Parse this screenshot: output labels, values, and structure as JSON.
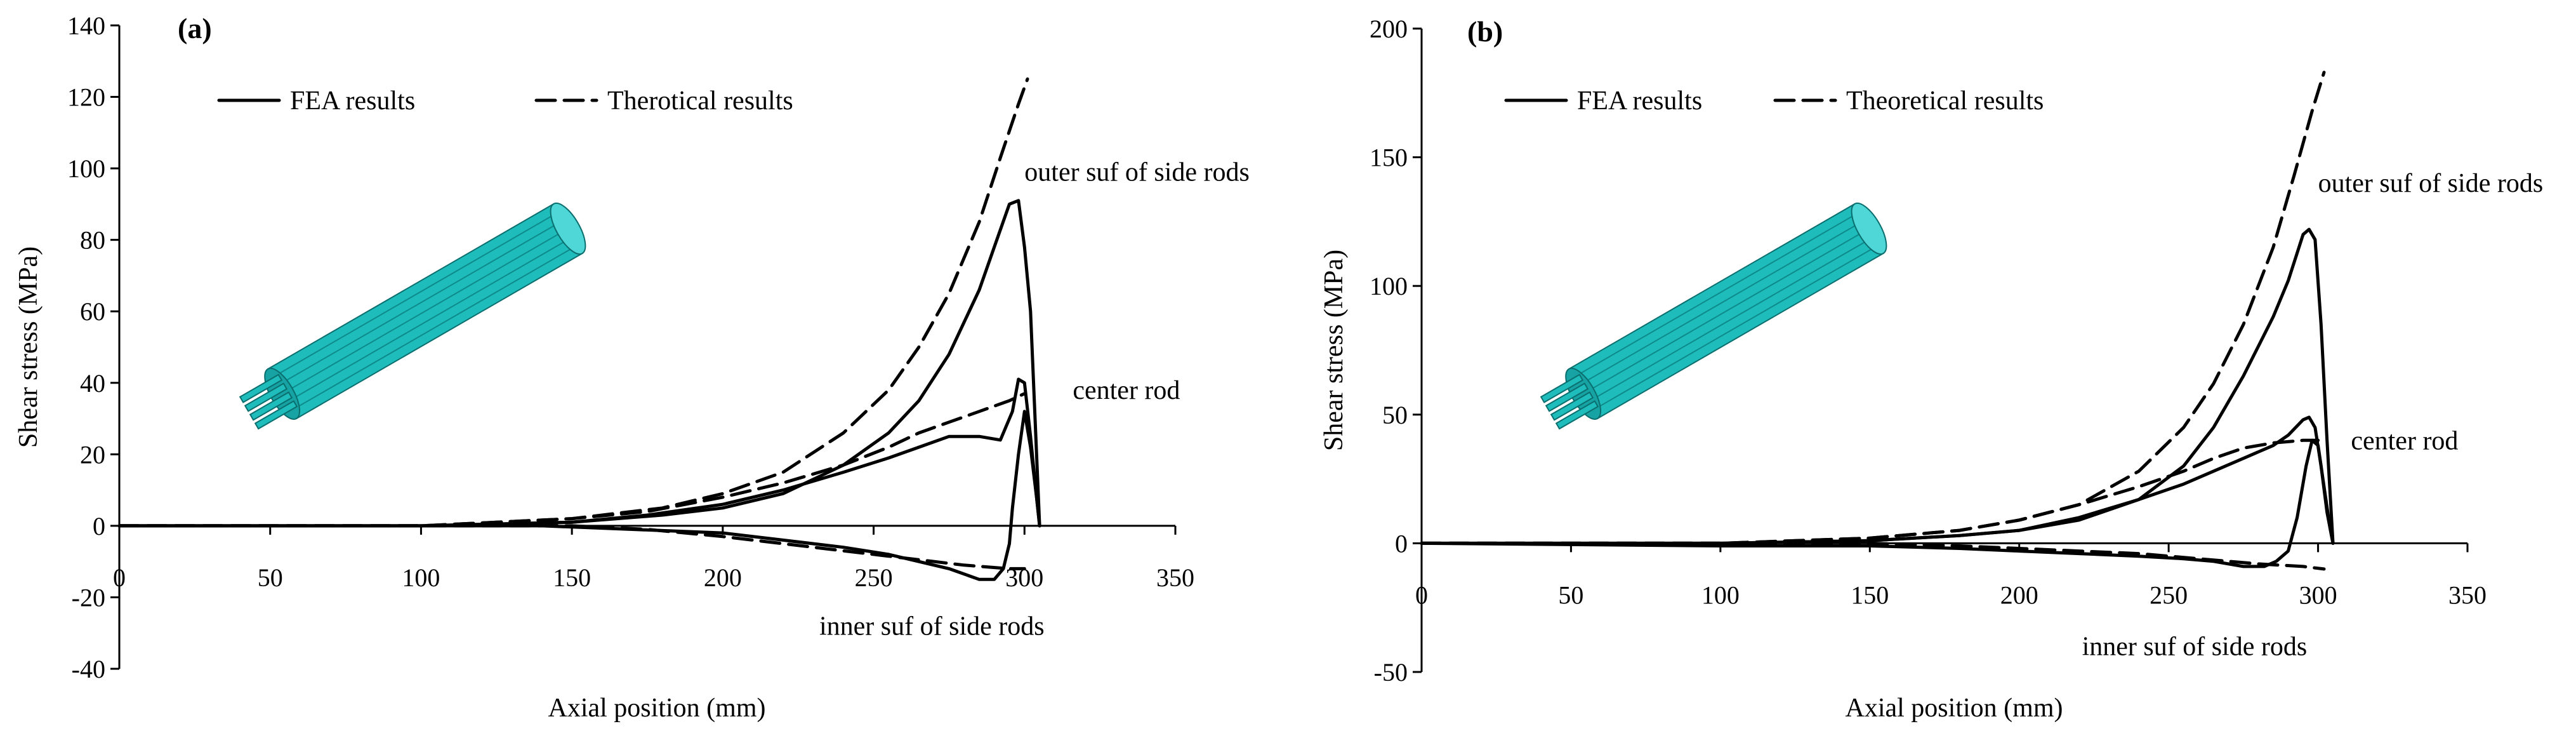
{
  "chart_data": [
    {
      "type": "line",
      "panel_label": "(a)",
      "xlabel": "Axial position  (mm)",
      "ylabel": "Shear stress (MPa)",
      "xlim": [
        0,
        350
      ],
      "ylim": [
        -40,
        140
      ],
      "xticks": [
        0,
        50,
        100,
        150,
        200,
        250,
        300,
        350
      ],
      "yticks": [
        -40,
        -20,
        0,
        20,
        40,
        60,
        80,
        100,
        120,
        140
      ],
      "grid": false,
      "legend_position": "top-left",
      "legend": [
        {
          "label": "FEA results",
          "style": "solid"
        },
        {
          "label": "Therotical results",
          "style": "dashed"
        }
      ],
      "annotations": [
        {
          "text": "outer suf of side rods",
          "x": 300,
          "y": 99
        },
        {
          "text": "center rod",
          "x": 316,
          "y": 38
        },
        {
          "text": "inner suf of side rods",
          "x": 232,
          "y": -28
        }
      ],
      "series": [
        {
          "style": "solid",
          "points": [
            [
              0,
              0
            ],
            [
              100,
              0
            ],
            [
              150,
              1
            ],
            [
              180,
              3
            ],
            [
              200,
              5
            ],
            [
              220,
              9
            ],
            [
              240,
              17
            ],
            [
              255,
              26
            ],
            [
              265,
              35
            ],
            [
              275,
              48
            ],
            [
              285,
              66
            ],
            [
              290,
              78
            ],
            [
              295,
              90
            ],
            [
              298,
              91
            ],
            [
              300,
              78
            ],
            [
              302,
              60
            ],
            [
              305,
              0
            ]
          ]
        },
        {
          "style": "dashed",
          "points": [
            [
              0,
              0
            ],
            [
              100,
              0
            ],
            [
              150,
              2
            ],
            [
              180,
              5
            ],
            [
              200,
              9
            ],
            [
              220,
              15
            ],
            [
              240,
              26
            ],
            [
              255,
              38
            ],
            [
              265,
              50
            ],
            [
              275,
              65
            ],
            [
              285,
              85
            ],
            [
              292,
              103
            ],
            [
              298,
              118
            ],
            [
              301,
              125
            ]
          ]
        },
        {
          "style": "solid",
          "points": [
            [
              0,
              0
            ],
            [
              100,
              0
            ],
            [
              150,
              1
            ],
            [
              175,
              3
            ],
            [
              200,
              6
            ],
            [
              220,
              10
            ],
            [
              240,
              15
            ],
            [
              255,
              19
            ],
            [
              265,
              22
            ],
            [
              275,
              25
            ],
            [
              285,
              25
            ],
            [
              292,
              24
            ],
            [
              296,
              32
            ],
            [
              298,
              41
            ],
            [
              300,
              40
            ],
            [
              302,
              25
            ],
            [
              304,
              8
            ],
            [
              305,
              0
            ]
          ]
        },
        {
          "style": "dashed",
          "points": [
            [
              0,
              0
            ],
            [
              100,
              0
            ],
            [
              150,
              2
            ],
            [
              175,
              4
            ],
            [
              200,
              8
            ],
            [
              220,
              12
            ],
            [
              240,
              17
            ],
            [
              255,
              22
            ],
            [
              265,
              26
            ],
            [
              275,
              29
            ],
            [
              285,
              32
            ],
            [
              295,
              35
            ],
            [
              300,
              37
            ]
          ]
        },
        {
          "style": "solid",
          "points": [
            [
              0,
              0
            ],
            [
              140,
              0
            ],
            [
              170,
              -1
            ],
            [
              200,
              -2
            ],
            [
              220,
              -4
            ],
            [
              240,
              -6
            ],
            [
              255,
              -8
            ],
            [
              265,
              -10
            ],
            [
              275,
              -12
            ],
            [
              285,
              -15
            ],
            [
              290,
              -15
            ],
            [
              293,
              -12
            ],
            [
              295,
              -5
            ],
            [
              296,
              5
            ],
            [
              298,
              20
            ],
            [
              300,
              32
            ],
            [
              302,
              22
            ],
            [
              304,
              8
            ],
            [
              305,
              0
            ]
          ]
        },
        {
          "style": "dashed",
          "points": [
            [
              0,
              0
            ],
            [
              150,
              0
            ],
            [
              175,
              -1
            ],
            [
              200,
              -3
            ],
            [
              220,
              -5
            ],
            [
              240,
              -7
            ],
            [
              260,
              -9
            ],
            [
              280,
              -11
            ],
            [
              295,
              -12
            ],
            [
              300,
              -12
            ]
          ]
        }
      ]
    },
    {
      "type": "line",
      "panel_label": "(b)",
      "xlabel": "Axial position  (mm)",
      "ylabel": "Shear stress (MPa)",
      "xlim": [
        0,
        350
      ],
      "ylim": [
        -50,
        200
      ],
      "xticks": [
        0,
        50,
        100,
        150,
        200,
        250,
        300,
        350
      ],
      "yticks": [
        -50,
        0,
        50,
        100,
        150,
        200
      ],
      "grid": false,
      "legend_position": "top-left",
      "legend": [
        {
          "label": "FEA results",
          "style": "solid"
        },
        {
          "label": "Theoretical results",
          "style": "dashed"
        }
      ],
      "annotations": [
        {
          "text": "outer suf of side rods",
          "x": 300,
          "y": 140
        },
        {
          "text": "center rod",
          "x": 311,
          "y": 40
        },
        {
          "text": "inner suf of side rods",
          "x": 221,
          "y": -40
        }
      ],
      "series": [
        {
          "style": "solid",
          "points": [
            [
              0,
              0
            ],
            [
              100,
              0
            ],
            [
              150,
              1
            ],
            [
              180,
              3
            ],
            [
              200,
              5
            ],
            [
              220,
              9
            ],
            [
              240,
              17
            ],
            [
              255,
              30
            ],
            [
              265,
              45
            ],
            [
              275,
              65
            ],
            [
              285,
              88
            ],
            [
              290,
              102
            ],
            [
              295,
              120
            ],
            [
              297,
              122
            ],
            [
              299,
              118
            ],
            [
              301,
              85
            ],
            [
              303,
              40
            ],
            [
              305,
              0
            ]
          ]
        },
        {
          "style": "dashed",
          "points": [
            [
              0,
              0
            ],
            [
              100,
              0
            ],
            [
              150,
              2
            ],
            [
              180,
              5
            ],
            [
              200,
              9
            ],
            [
              220,
              15
            ],
            [
              240,
              28
            ],
            [
              255,
              45
            ],
            [
              265,
              62
            ],
            [
              275,
              85
            ],
            [
              285,
              115
            ],
            [
              292,
              143
            ],
            [
              298,
              168
            ],
            [
              302,
              183
            ]
          ]
        },
        {
          "style": "solid",
          "points": [
            [
              0,
              0
            ],
            [
              100,
              0
            ],
            [
              150,
              1
            ],
            [
              180,
              3
            ],
            [
              200,
              5
            ],
            [
              220,
              10
            ],
            [
              240,
              17
            ],
            [
              255,
              23
            ],
            [
              265,
              28
            ],
            [
              275,
              33
            ],
            [
              285,
              38
            ],
            [
              290,
              42
            ],
            [
              295,
              48
            ],
            [
              297,
              49
            ],
            [
              299,
              45
            ],
            [
              301,
              30
            ],
            [
              303,
              12
            ],
            [
              305,
              0
            ]
          ]
        },
        {
          "style": "dashed",
          "points": [
            [
              0,
              0
            ],
            [
              100,
              0
            ],
            [
              150,
              2
            ],
            [
              180,
              5
            ],
            [
              200,
              9
            ],
            [
              220,
              15
            ],
            [
              240,
              22
            ],
            [
              255,
              28
            ],
            [
              265,
              33
            ],
            [
              275,
              37
            ],
            [
              285,
              39
            ],
            [
              295,
              40
            ],
            [
              300,
              40
            ]
          ]
        },
        {
          "style": "solid",
          "points": [
            [
              0,
              0
            ],
            [
              100,
              -1
            ],
            [
              150,
              -1
            ],
            [
              180,
              -2
            ],
            [
              200,
              -3
            ],
            [
              220,
              -4
            ],
            [
              240,
              -5
            ],
            [
              255,
              -6
            ],
            [
              265,
              -7
            ],
            [
              275,
              -9
            ],
            [
              282,
              -9
            ],
            [
              286,
              -7
            ],
            [
              290,
              -3
            ],
            [
              293,
              10
            ],
            [
              296,
              30
            ],
            [
              298,
              40
            ],
            [
              300,
              38
            ],
            [
              302,
              22
            ],
            [
              304,
              6
            ],
            [
              305,
              0
            ]
          ]
        },
        {
          "style": "dashed",
          "points": [
            [
              0,
              0
            ],
            [
              150,
              0
            ],
            [
              180,
              -1
            ],
            [
              200,
              -2
            ],
            [
              220,
              -3
            ],
            [
              240,
              -4
            ],
            [
              260,
              -6
            ],
            [
              280,
              -8
            ],
            [
              295,
              -9
            ],
            [
              302,
              -10
            ]
          ]
        }
      ]
    }
  ]
}
